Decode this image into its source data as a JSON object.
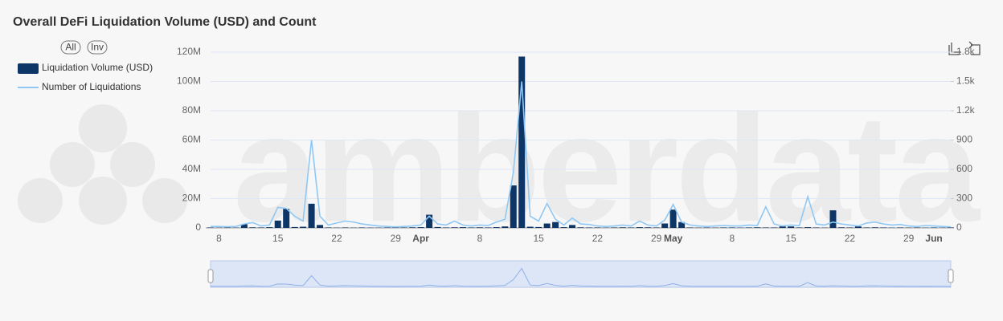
{
  "chart_data": {
    "type": "bar-line",
    "title": "Overall DeFi Liquidation Volume (USD) and Count",
    "buttons": [
      "All",
      "Inv"
    ],
    "watermark": "amberdata",
    "categories": [
      null,
      "8",
      null,
      null,
      null,
      null,
      null,
      null,
      "15",
      null,
      null,
      null,
      null,
      null,
      null,
      "22",
      null,
      null,
      null,
      null,
      null,
      null,
      "29",
      null,
      null,
      "Apr",
      null,
      null,
      null,
      null,
      null,
      null,
      "8",
      null,
      null,
      null,
      null,
      null,
      null,
      "15",
      null,
      null,
      null,
      null,
      null,
      null,
      "22",
      null,
      null,
      null,
      null,
      null,
      null,
      "29",
      null,
      "May",
      null,
      null,
      null,
      null,
      null,
      null,
      "8",
      null,
      null,
      null,
      null,
      null,
      null,
      "15",
      null,
      null,
      null,
      null,
      null,
      null,
      "22",
      null,
      null,
      null,
      null,
      null,
      null,
      "29",
      null,
      null,
      "Jun",
      null,
      null
    ],
    "series": [
      {
        "name": "Liquidation Volume (USD)",
        "type": "bar",
        "color": "#0d3566",
        "axis": "y",
        "values": [
          300000,
          200000,
          300000,
          200000,
          2500000,
          400000,
          300000,
          500000,
          5000000,
          13000000,
          600000,
          800000,
          16500000,
          2000000,
          300000,
          200000,
          300000,
          200000,
          300000,
          200000,
          200000,
          300000,
          200000,
          300000,
          400000,
          500000,
          9000000,
          600000,
          300000,
          400000,
          500000,
          300000,
          400000,
          300000,
          500000,
          1000000,
          29000000,
          117000000,
          800000,
          600000,
          3000000,
          4000000,
          500000,
          2000000,
          400000,
          300000,
          300000,
          200000,
          300000,
          400000,
          300000,
          500000,
          400000,
          300000,
          3000000,
          12500000,
          4000000,
          300000,
          200000,
          300000,
          200000,
          300000,
          300000,
          200000,
          300000,
          400000,
          300000,
          300000,
          1000000,
          1000000,
          300000,
          500000,
          300000,
          200000,
          12000000,
          400000,
          300000,
          1000000,
          300000,
          400000,
          300000,
          200000,
          300000,
          200000,
          300000,
          200000,
          300000,
          200000,
          300000
        ]
      },
      {
        "name": "Number of Liquidations",
        "type": "line",
        "color": "#90c8f5",
        "axis": "y2",
        "values": [
          15,
          15,
          12,
          15,
          40,
          55,
          20,
          30,
          210,
          200,
          120,
          70,
          900,
          120,
          30,
          50,
          70,
          60,
          40,
          30,
          20,
          15,
          10,
          15,
          20,
          30,
          120,
          40,
          30,
          70,
          30,
          20,
          30,
          25,
          60,
          90,
          570,
          1500,
          120,
          70,
          250,
          90,
          30,
          100,
          40,
          35,
          20,
          15,
          20,
          30,
          20,
          70,
          30,
          20,
          80,
          240,
          60,
          30,
          20,
          15,
          20,
          25,
          20,
          20,
          30,
          25,
          215,
          40,
          20,
          30,
          25,
          320,
          40,
          30,
          60,
          40,
          30,
          20,
          50,
          60,
          40,
          30,
          35,
          20,
          15,
          25,
          20,
          15,
          10
        ]
      }
    ],
    "ylim": [
      0,
      120000000
    ],
    "yticks": [
      0,
      {
        "value": 20000000,
        "label": "20M"
      },
      {
        "value": 40000000,
        "label": "40M"
      },
      {
        "value": 60000000,
        "label": "60M"
      },
      {
        "value": 80000000,
        "label": "80M"
      },
      {
        "value": 100000000,
        "label": "100M"
      },
      {
        "value": 120000000,
        "label": "120M"
      }
    ],
    "y2lim": [
      0,
      1800
    ],
    "y2ticks": [
      0,
      300,
      600,
      900,
      {
        "value": 1200,
        "label": "1.2k"
      },
      {
        "value": 1500,
        "label": "1.5k"
      },
      {
        "value": 1800,
        "label": "1.8k"
      }
    ],
    "grid": true
  }
}
